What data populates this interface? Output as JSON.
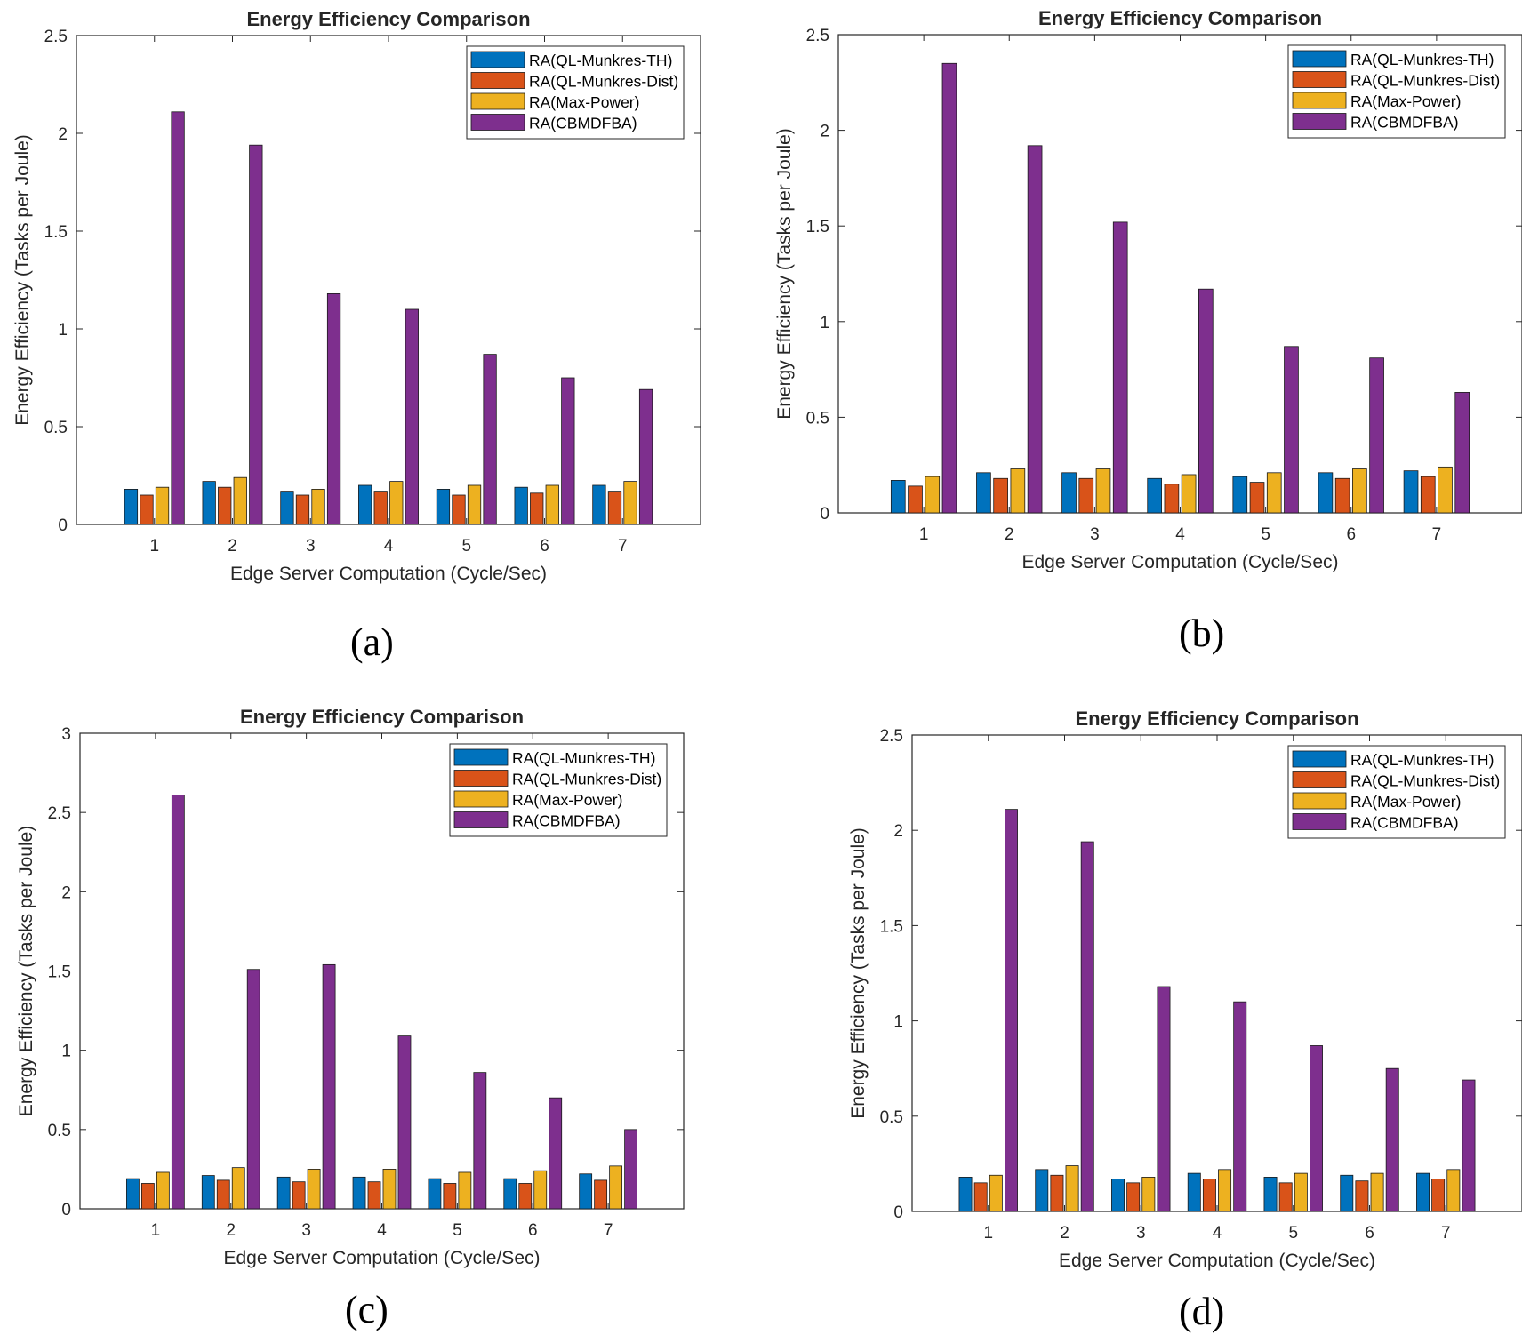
{
  "legend_series": [
    "RA(QL-Munkres-TH)",
    "RA(QL-Munkres-Dist)",
    "RA(Max-Power)",
    "RA(CBMDFBA)"
  ],
  "colors": {
    "RA(QL-Munkres-TH)": "#0072BD",
    "RA(QL-Munkres-Dist)": "#D95319",
    "RA(Max-Power)": "#EDB120",
    "RA(CBMDFBA)": "#7E2F8E",
    "axis": "#262626"
  },
  "captions": {
    "a": "(a)",
    "b": "(b)",
    "c": "(c)",
    "d": "(d)"
  },
  "chart_data": [
    {
      "type": "bar",
      "title": "Energy Efficiency Comparison",
      "xlabel": "Edge Server Computation (Cycle/Sec)",
      "ylabel": "Energy Efficiency (Tasks per Joule)",
      "categories": [
        "1",
        "2",
        "3",
        "4",
        "5",
        "6",
        "7"
      ],
      "ylim": [
        0,
        2.5
      ],
      "yticks": [
        "0",
        "0.5",
        "1",
        "1.5",
        "2",
        "2.5"
      ],
      "legend_position": "top-right",
      "series": [
        {
          "name": "RA(QL-Munkres-TH)",
          "values": [
            0.18,
            0.22,
            0.17,
            0.2,
            0.18,
            0.19,
            0.2
          ]
        },
        {
          "name": "RA(QL-Munkres-Dist)",
          "values": [
            0.15,
            0.19,
            0.15,
            0.17,
            0.15,
            0.16,
            0.17
          ]
        },
        {
          "name": "RA(Max-Power)",
          "values": [
            0.19,
            0.24,
            0.18,
            0.22,
            0.2,
            0.2,
            0.22
          ]
        },
        {
          "name": "RA(CBMDFBA)",
          "values": [
            2.11,
            1.94,
            1.18,
            1.1,
            0.87,
            0.75,
            0.69
          ]
        }
      ]
    },
    {
      "type": "bar",
      "title": "Energy Efficiency Comparison",
      "xlabel": "Edge Server Computation (Cycle/Sec)",
      "ylabel": "Energy Efficiency (Tasks per Joule)",
      "categories": [
        "1",
        "2",
        "3",
        "4",
        "5",
        "6",
        "7"
      ],
      "ylim": [
        0,
        2.5
      ],
      "yticks": [
        "0",
        "0.5",
        "1",
        "1.5",
        "2",
        "2.5"
      ],
      "legend_position": "top-right",
      "series": [
        {
          "name": "RA(QL-Munkres-TH)",
          "values": [
            0.17,
            0.21,
            0.21,
            0.18,
            0.19,
            0.21,
            0.22
          ]
        },
        {
          "name": "RA(QL-Munkres-Dist)",
          "values": [
            0.14,
            0.18,
            0.18,
            0.15,
            0.16,
            0.18,
            0.19
          ]
        },
        {
          "name": "RA(Max-Power)",
          "values": [
            0.19,
            0.23,
            0.23,
            0.2,
            0.21,
            0.23,
            0.24
          ]
        },
        {
          "name": "RA(CBMDFBA)",
          "values": [
            2.35,
            1.92,
            1.52,
            1.17,
            0.87,
            0.81,
            0.63
          ]
        }
      ]
    },
    {
      "type": "bar",
      "title": "Energy Efficiency Comparison",
      "xlabel": "Edge Server Computation (Cycle/Sec)",
      "ylabel": "Energy Efficiency (Tasks per Joule)",
      "categories": [
        "1",
        "2",
        "3",
        "4",
        "5",
        "6",
        "7"
      ],
      "ylim": [
        0,
        3
      ],
      "yticks": [
        "0",
        "0.5",
        "1",
        "1.5",
        "2",
        "2.5",
        "3"
      ],
      "legend_position": "top-right",
      "series": [
        {
          "name": "RA(QL-Munkres-TH)",
          "values": [
            0.19,
            0.21,
            0.2,
            0.2,
            0.19,
            0.19,
            0.22
          ]
        },
        {
          "name": "RA(QL-Munkres-Dist)",
          "values": [
            0.16,
            0.18,
            0.17,
            0.17,
            0.16,
            0.16,
            0.18
          ]
        },
        {
          "name": "RA(Max-Power)",
          "values": [
            0.23,
            0.26,
            0.25,
            0.25,
            0.23,
            0.24,
            0.27
          ]
        },
        {
          "name": "RA(CBMDFBA)",
          "values": [
            2.61,
            1.51,
            1.54,
            1.09,
            0.86,
            0.7,
            0.5
          ]
        }
      ]
    },
    {
      "type": "bar",
      "title": "Energy Efficiency Comparison",
      "xlabel": "Edge Server Computation (Cycle/Sec)",
      "ylabel": "Energy Efficiency (Tasks per Joule)",
      "categories": [
        "1",
        "2",
        "3",
        "4",
        "5",
        "6",
        "7"
      ],
      "ylim": [
        0,
        2.5
      ],
      "yticks": [
        "0",
        "0.5",
        "1",
        "1.5",
        "2",
        "2.5"
      ],
      "legend_position": "top-right",
      "series": [
        {
          "name": "RA(QL-Munkres-TH)",
          "values": [
            0.18,
            0.22,
            0.17,
            0.2,
            0.18,
            0.19,
            0.2
          ]
        },
        {
          "name": "RA(QL-Munkres-Dist)",
          "values": [
            0.15,
            0.19,
            0.15,
            0.17,
            0.15,
            0.16,
            0.17
          ]
        },
        {
          "name": "RA(Max-Power)",
          "values": [
            0.19,
            0.24,
            0.18,
            0.22,
            0.2,
            0.2,
            0.22
          ]
        },
        {
          "name": "RA(CBMDFBA)",
          "values": [
            2.11,
            1.94,
            1.18,
            1.1,
            0.87,
            0.75,
            0.69
          ]
        }
      ]
    }
  ]
}
